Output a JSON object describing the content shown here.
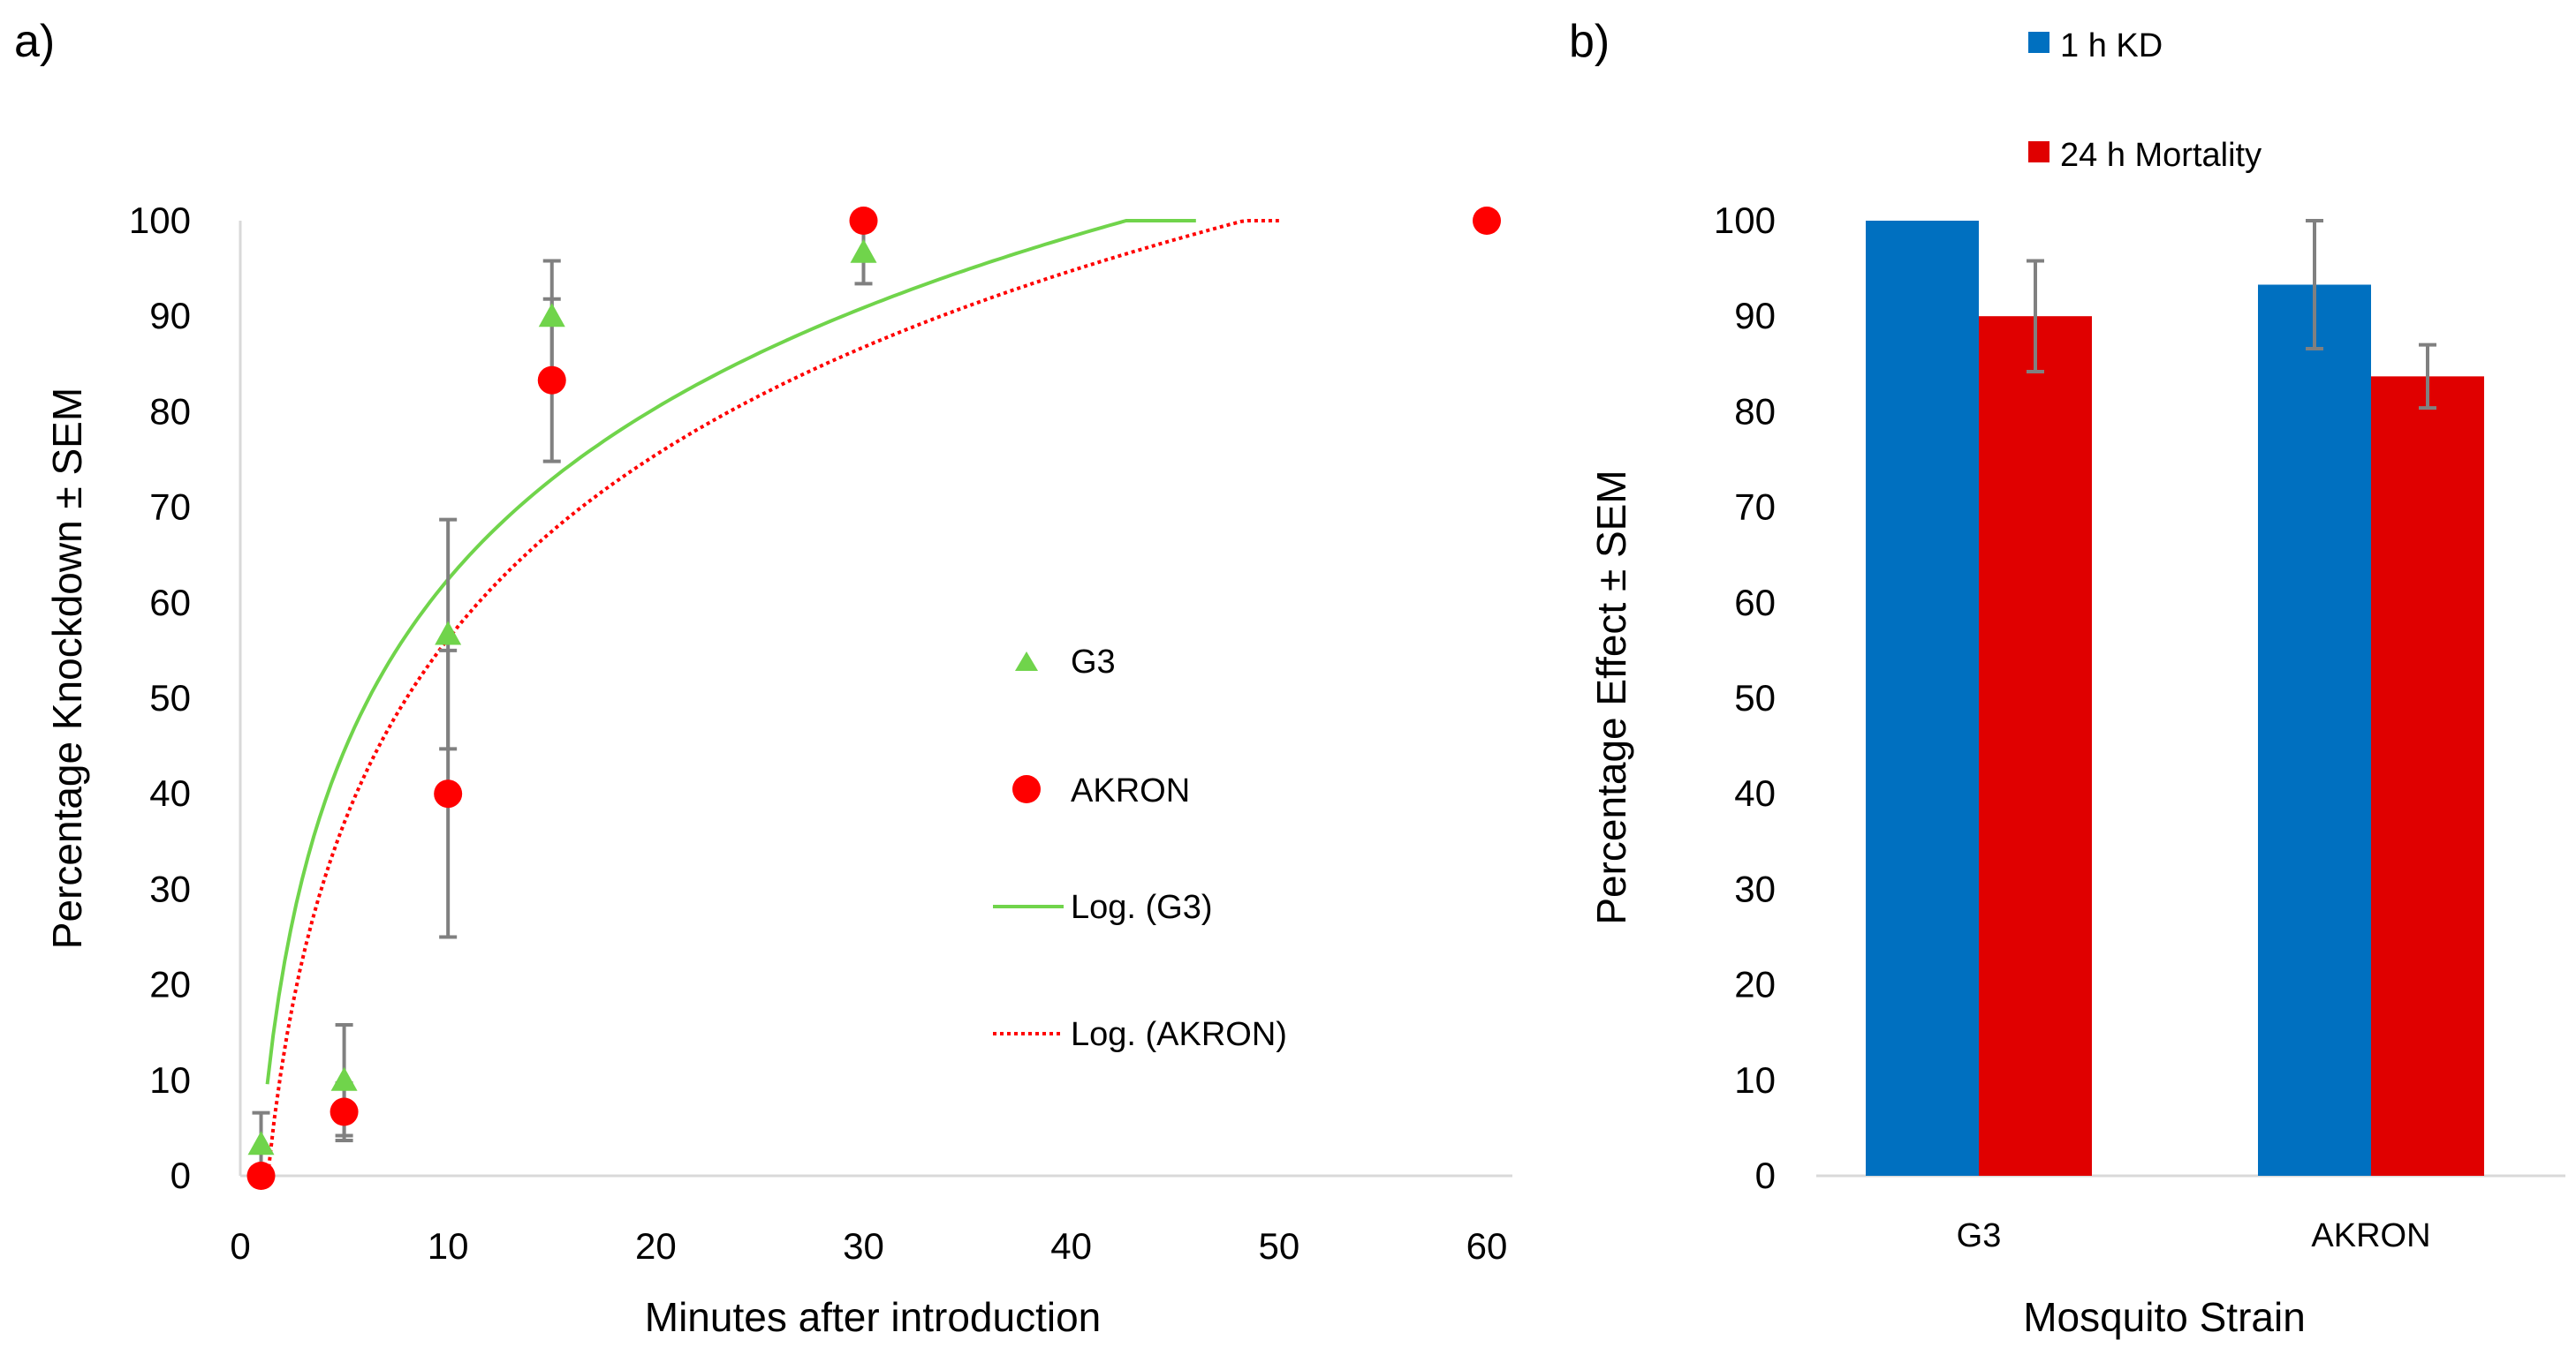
{
  "colors": {
    "g3": "#70D44B",
    "akron": "#FF0000",
    "kd": "#0070C0",
    "mort": "#E00000",
    "err": "#808080",
    "axis": "#D9D9D9"
  },
  "chart_data": [
    {
      "panel": "a)",
      "type": "scatter",
      "xlabel": "Minutes after introduction",
      "ylabel": "Percentage Knockdown ± SEM",
      "xlim": [
        0,
        62
      ],
      "ylim": [
        0,
        100
      ],
      "xticks": [
        "0",
        "10",
        "20",
        "30",
        "40",
        "50",
        "60"
      ],
      "yticks": [
        "0",
        "10",
        "20",
        "30",
        "40",
        "50",
        "60",
        "70",
        "80",
        "90",
        "100"
      ],
      "series": [
        {
          "name": "G3",
          "marker": "triangle",
          "x": [
            1,
            5,
            10,
            15,
            30
          ],
          "y": [
            3.3,
            10,
            56.7,
            90,
            96.7
          ],
          "err": [
            3.3,
            5.8,
            12.0,
            5.8,
            3.3
          ]
        },
        {
          "name": "AKRON",
          "marker": "circle",
          "x": [
            1,
            5,
            10,
            15,
            30,
            60
          ],
          "y": [
            0,
            6.7,
            40,
            83.3,
            100,
            100
          ],
          "err": [
            0,
            3.0,
            15.0,
            8.5,
            0,
            0
          ]
        }
      ],
      "trendlines": [
        {
          "name": "Log. (G3)",
          "style": "solid",
          "a": 2.8,
          "b": 25.9,
          "x_from": 1.3,
          "x_to": 46
        },
        {
          "name": "Log. (AKRON)",
          "style": "dotted",
          "a": -7.8,
          "b": 27.8,
          "x_from": 1.33,
          "x_to": 50
        }
      ],
      "legend": [
        "G3",
        "AKRON",
        "Log. (G3)",
        "Log. (AKRON)"
      ]
    },
    {
      "panel": "b)",
      "type": "bar",
      "xlabel": "Mosquito Strain",
      "ylabel": "Percentage Effect ± SEM",
      "categories": [
        "G3",
        "AKRON"
      ],
      "ylim": [
        0,
        100
      ],
      "yticks": [
        "0",
        "10",
        "20",
        "30",
        "40",
        "50",
        "60",
        "70",
        "80",
        "90",
        "100"
      ],
      "series": [
        {
          "name": "1 h KD",
          "values": [
            100,
            93.3
          ],
          "err": [
            0,
            6.7
          ]
        },
        {
          "name": "24 h Mortality",
          "values": [
            90,
            83.7
          ],
          "err": [
            5.8,
            3.3
          ]
        }
      ],
      "legend": [
        "1 h KD",
        "24 h Mortality"
      ]
    }
  ]
}
